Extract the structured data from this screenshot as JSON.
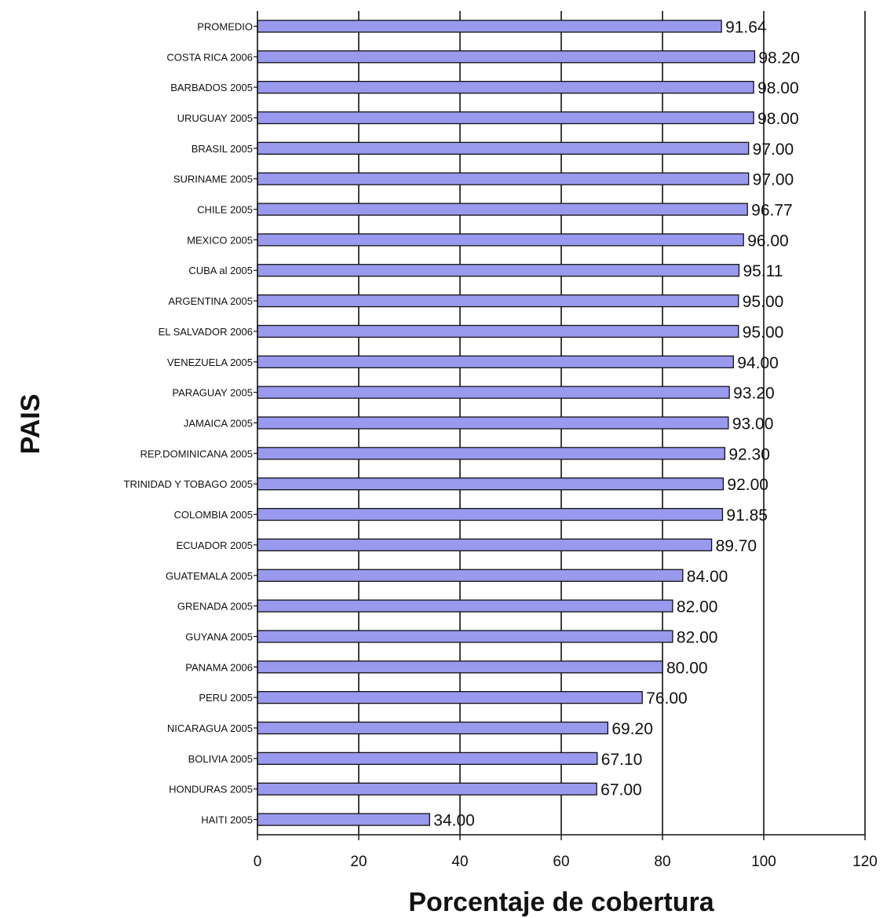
{
  "chart_data": {
    "type": "bar",
    "orientation": "horizontal",
    "title": "",
    "xlabel": "Porcentaje de cobertura",
    "ylabel": "PAIS",
    "xlim": [
      0,
      120
    ],
    "xticks": [
      "0",
      "20",
      "40",
      "60",
      "80",
      "100",
      "120"
    ],
    "grid": "vertical",
    "bar_color": "#9999ee",
    "categories": [
      "PROMEDIO",
      "COSTA RICA 2006",
      "BARBADOS 2005",
      "URUGUAY 2005",
      "BRASIL 2005",
      "SURINAME 2005",
      "CHILE 2005",
      "MEXICO 2005",
      "CUBA al 2005",
      "ARGENTINA 2005",
      "EL SALVADOR 2006",
      "VENEZUELA 2005",
      "PARAGUAY 2005",
      "JAMAICA 2005",
      "REP.DOMINICANA 2005",
      "TRINIDAD Y TOBAGO 2005",
      "COLOMBIA 2005",
      "ECUADOR 2005",
      "GUATEMALA 2005",
      "GRENADA 2005",
      "GUYANA 2005",
      "PANAMA 2006",
      "PERU 2005",
      "NICARAGUA 2005",
      "BOLIVIA 2005",
      "HONDURAS 2005",
      "HAITI 2005"
    ],
    "values": [
      91.64,
      98.2,
      98.0,
      98.0,
      97.0,
      97.0,
      96.77,
      96.0,
      95.11,
      95.0,
      95.0,
      94.0,
      93.2,
      93.0,
      92.3,
      92.0,
      91.85,
      89.7,
      84.0,
      82.0,
      82.0,
      80.0,
      76.0,
      69.2,
      67.1,
      67.0,
      34.0
    ],
    "value_labels": [
      "91.64",
      "98.20",
      "98.00",
      "98.00",
      "97.00",
      "97.00",
      "96.77",
      "96.00",
      "95.11",
      "95.00",
      "95.00",
      "94.00",
      "93.20",
      "93.00",
      "92.30",
      "92.00",
      "91.85",
      "89.70",
      "84.00",
      "82.00",
      "82.00",
      "80.00",
      "76.00",
      "69.20",
      "67.10",
      "67.00",
      "34.00"
    ]
  }
}
